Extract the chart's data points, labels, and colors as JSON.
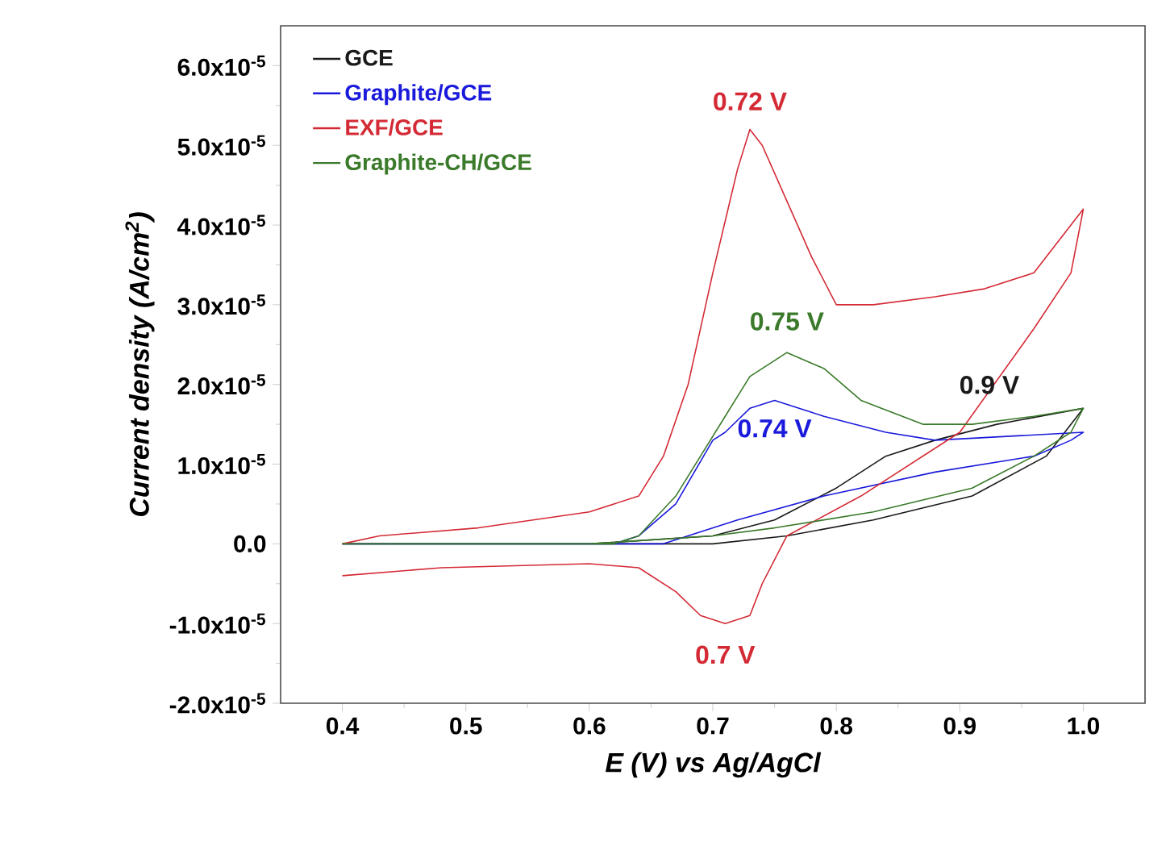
{
  "chart_data": {
    "type": "line",
    "xlabel": "E (V) vs Ag/AgCl",
    "ylabel": "Current density (A/cm$^{2}$)",
    "xlim": [
      0.35,
      1.05
    ],
    "ylim": [
      -2e-05,
      6.5e-05
    ],
    "xticks": [
      0.4,
      0.5,
      0.6,
      0.7,
      0.8,
      0.9,
      {
        "value": 1.0,
        "label": "1.0"
      }
    ],
    "yticks": [
      {
        "value": -2e-05,
        "label": "-2.0x10$^{-5}$"
      },
      {
        "value": -1e-05,
        "label": "-1.0x10$^{-5}$"
      },
      {
        "value": 0,
        "label": "0.0"
      },
      {
        "value": 1e-05,
        "label": "1.0x10$^{-5}$"
      },
      {
        "value": 2e-05,
        "label": "2.0x10$^{-5}$"
      },
      {
        "value": 3e-05,
        "label": "3.0x10$^{-5}$"
      },
      {
        "value": 4e-05,
        "label": "4.0x10$^{-5}$"
      },
      {
        "value": 5e-05,
        "label": "5.0x10$^{-5}$"
      },
      {
        "value": 6e-05,
        "label": "6.0x10$^{-5}$"
      }
    ],
    "legend": "top left",
    "series": [
      {
        "name": "GCE",
        "color": "#1a1a1a",
        "x": [
          0.4,
          0.6,
          0.7,
          0.76,
          0.83,
          0.91,
          0.97,
          1.0,
          0.93,
          0.88,
          0.84,
          0.8,
          0.75,
          0.7,
          0.6,
          0.41
        ],
        "values": [
          0.0,
          0.0,
          0.0,
          1e-06,
          3e-06,
          6e-06,
          1.1e-05,
          1.7e-05,
          1.5e-05,
          1.3e-05,
          1.1e-05,
          7e-06,
          3e-06,
          1e-06,
          0.0,
          0.0
        ]
      },
      {
        "name": "Graphite/GCE",
        "color": "#1a1adc",
        "x": [
          0.4,
          0.62,
          0.64,
          0.67,
          0.7,
          0.71,
          0.73,
          0.75,
          0.79,
          0.84,
          0.88,
          1.0,
          0.99,
          0.96,
          0.88,
          0.79,
          0.72,
          0.66,
          0.5,
          0.41
        ],
        "values": [
          0.0,
          0.0,
          1e-06,
          5e-06,
          1.3e-05,
          1.4e-05,
          1.7e-05,
          1.8e-05,
          1.6e-05,
          1.4e-05,
          1.3e-05,
          1.4e-05,
          1.3e-05,
          1.1e-05,
          9e-06,
          6e-06,
          3e-06,
          0.0,
          0.0,
          0.0
        ]
      },
      {
        "name": "EXF/GCE",
        "color": "#d42a35",
        "x": [
          0.4,
          0.43,
          0.51,
          0.6,
          0.64,
          0.66,
          0.68,
          0.7,
          0.72,
          0.73,
          0.74,
          0.76,
          0.78,
          0.8,
          0.83,
          0.88,
          0.92,
          0.96,
          0.98,
          1.0,
          0.99,
          0.96,
          0.9,
          0.82,
          0.76,
          0.74,
          0.73,
          0.71,
          0.69,
          0.67,
          0.64,
          0.6,
          0.48,
          0.4
        ],
        "values": [
          0.0,
          1e-06,
          2e-06,
          4e-06,
          6e-06,
          1.1e-05,
          2e-05,
          3.4e-05,
          4.7e-05,
          5.2e-05,
          5e-05,
          4.3e-05,
          3.6e-05,
          3e-05,
          3e-05,
          3.1e-05,
          3.2e-05,
          3.4e-05,
          3.8e-05,
          4.2e-05,
          3.4e-05,
          2.7e-05,
          1.4e-05,
          6e-06,
          1e-06,
          -5e-06,
          -9e-06,
          -1e-05,
          -9e-06,
          -6e-06,
          -3e-06,
          -2.5e-06,
          -3e-06,
          -4e-06
        ]
      },
      {
        "name": "Graphite-CH/GCE",
        "color": "#3a7a2a",
        "x": [
          0.4,
          0.62,
          0.64,
          0.67,
          0.69,
          0.71,
          0.73,
          0.76,
          0.79,
          0.82,
          0.87,
          0.91,
          0.96,
          1.0,
          0.99,
          0.96,
          0.91,
          0.83,
          0.75,
          0.7,
          0.6,
          0.41
        ],
        "values": [
          0.0,
          0.0,
          1e-06,
          6e-06,
          1.1e-05,
          1.6e-05,
          2.1e-05,
          2.4e-05,
          2.2e-05,
          1.8e-05,
          1.5e-05,
          1.5e-05,
          1.6e-05,
          1.7e-05,
          1.4e-05,
          1.1e-05,
          7e-06,
          4e-06,
          2e-06,
          1e-06,
          0.0,
          0.0
        ]
      }
    ],
    "annotations": [
      {
        "text": "0.72 V",
        "x": 0.73,
        "y": 5.2e-05
      },
      {
        "text": "0.75 V",
        "x": 0.76,
        "y": 2.4e-05
      },
      {
        "text": "0.74 V",
        "x": 0.75,
        "y": 1.8e-05
      },
      {
        "text": "0.9 V",
        "x": 0.9,
        "y": 1.4e-05
      },
      {
        "text": "0.7 V",
        "x": 0.71,
        "y": -1e-05
      }
    ]
  }
}
